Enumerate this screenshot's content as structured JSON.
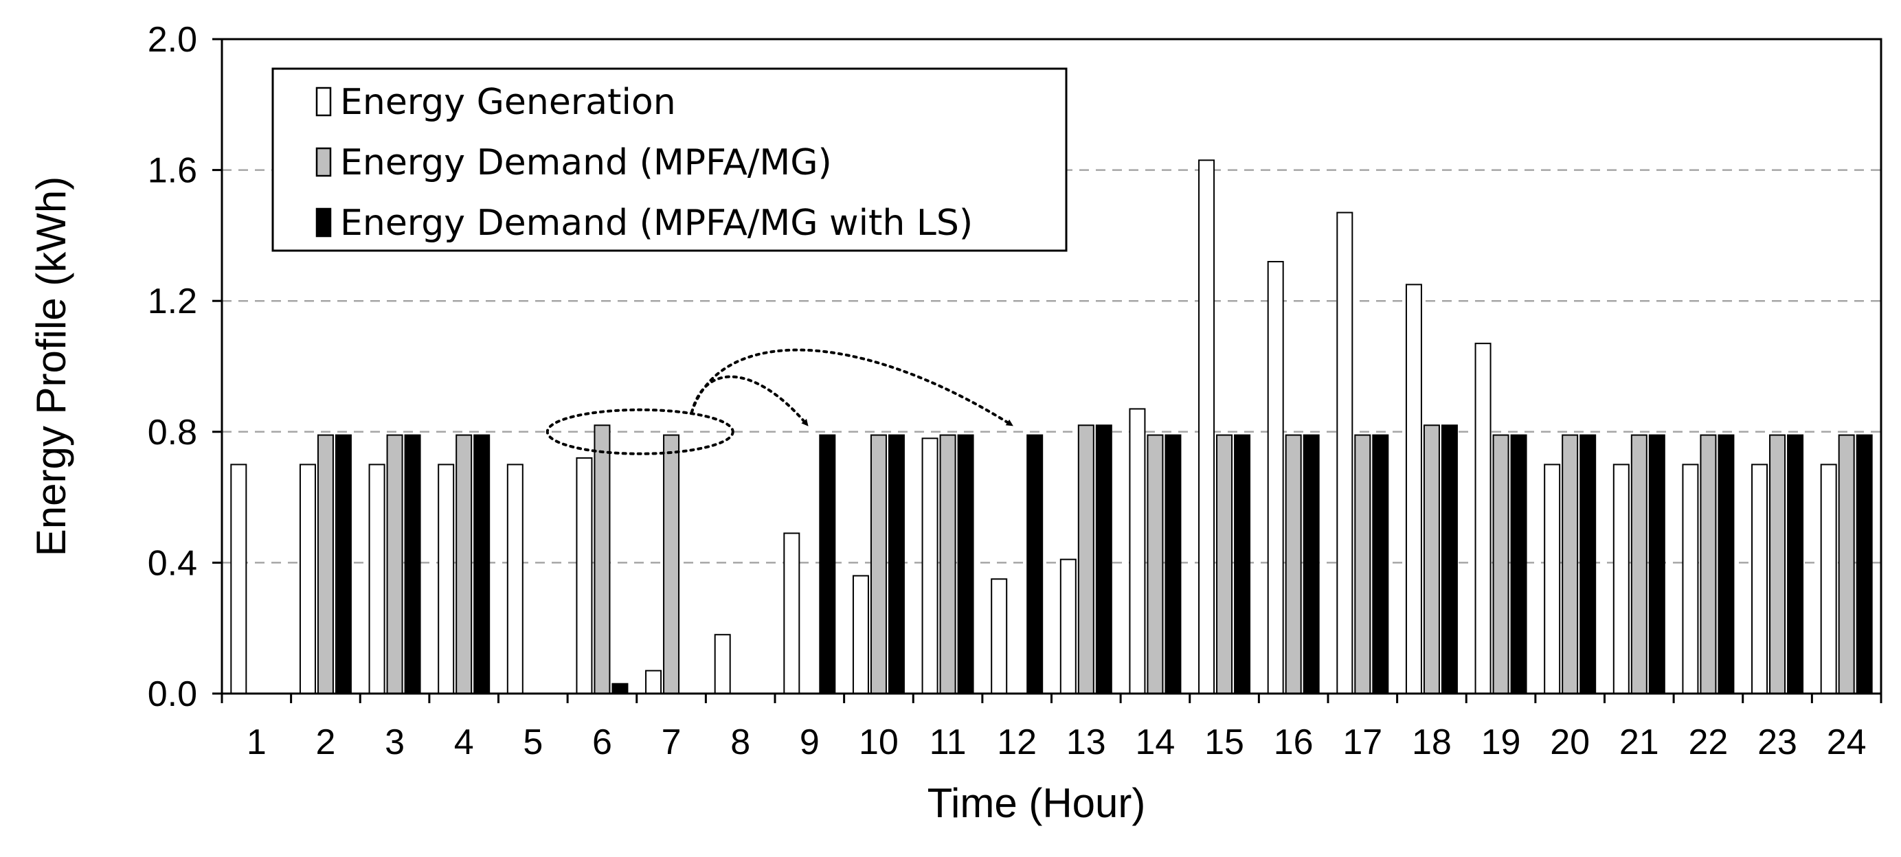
{
  "chart_data": {
    "type": "bar",
    "xlabel": "Time  (Hour)",
    "ylabel": "Energy  Profile (kWh)",
    "ylim": [
      0,
      2.0
    ],
    "y_ticks": [
      "0.0",
      "0.4",
      "0.8",
      "1.2",
      "1.6",
      "2.0"
    ],
    "grid": "dashed horizontal at 0.4, 0.8, 1.2, 1.6",
    "legend_position": "top-left",
    "categories": [
      "1",
      "2",
      "3",
      "4",
      "5",
      "6",
      "7",
      "8",
      "9",
      "10",
      "11",
      "12",
      "13",
      "14",
      "15",
      "16",
      "17",
      "18",
      "19",
      "20",
      "21",
      "22",
      "23",
      "24"
    ],
    "series": [
      {
        "name": "Energy Generation",
        "color": "#ffffff",
        "values": [
          0.7,
          0.7,
          0.7,
          0.7,
          0.7,
          0.72,
          0.07,
          0.18,
          0.49,
          0.36,
          0.78,
          0.35,
          0.41,
          0.87,
          1.63,
          1.32,
          1.47,
          1.25,
          1.07,
          0.7,
          0.7,
          0.7,
          0.7,
          0.7
        ]
      },
      {
        "name": "Energy Demand (MPFA/MG)",
        "color": "#bfbfbf",
        "values": [
          0,
          0.79,
          0.79,
          0.79,
          0,
          0.82,
          0.79,
          0,
          0,
          0.79,
          0.79,
          0,
          0.82,
          0.79,
          0.79,
          0.79,
          0.79,
          0.82,
          0.79,
          0.79,
          0.79,
          0.79,
          0.79,
          0.79
        ]
      },
      {
        "name": "Energy Demand (MPFA/MG with LS)",
        "color": "#000000",
        "values": [
          0,
          0.79,
          0.79,
          0.79,
          0,
          0.03,
          0,
          0,
          0.79,
          0.79,
          0.79,
          0.79,
          0.82,
          0.79,
          0.79,
          0.79,
          0.79,
          0.82,
          0.79,
          0.79,
          0.79,
          0.79,
          0.79,
          0.79
        ]
      }
    ],
    "annotations": [
      {
        "type": "dotted ellipse",
        "around_hours": [
          "6",
          "7"
        ],
        "arrows_to_hours": [
          "9",
          "12"
        ]
      }
    ]
  }
}
